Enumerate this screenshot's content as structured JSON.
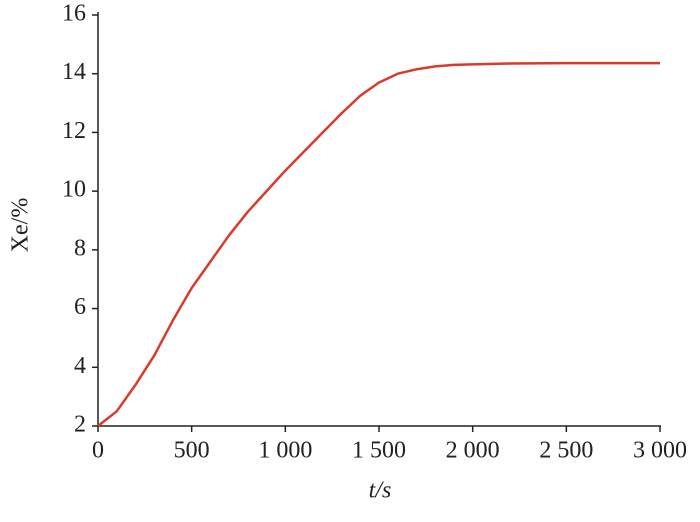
{
  "chart_data": {
    "type": "line",
    "x_label": "t/s",
    "y_label": "Xe/%",
    "x": [
      0,
      100,
      200,
      300,
      400,
      500,
      600,
      700,
      800,
      900,
      1000,
      1100,
      1200,
      1300,
      1400,
      1500,
      1600,
      1700,
      1800,
      1900,
      2000,
      2200,
      2500,
      3000
    ],
    "series": [
      {
        "color": "#d93a2b",
        "values": [
          2.0,
          2.5,
          3.4,
          4.4,
          5.6,
          6.7,
          7.6,
          8.5,
          9.3,
          10.0,
          10.7,
          11.35,
          12.0,
          12.65,
          13.25,
          13.7,
          14.0,
          14.15,
          14.25,
          14.3,
          14.32,
          14.35,
          14.36,
          14.36
        ]
      }
    ],
    "xlim": [
      0,
      3000
    ],
    "ylim": [
      2,
      16
    ],
    "xticks": [
      0,
      500,
      {
        "value": 1000,
        "label": "1 000"
      },
      {
        "value": 1500,
        "label": "1 500"
      },
      {
        "value": 2000,
        "label": "2 000"
      },
      {
        "value": 2500,
        "label": "2 500"
      },
      {
        "value": 3000,
        "label": "3 000"
      }
    ],
    "yticks": [
      2,
      4,
      6,
      8,
      10,
      12,
      14,
      16
    ]
  }
}
